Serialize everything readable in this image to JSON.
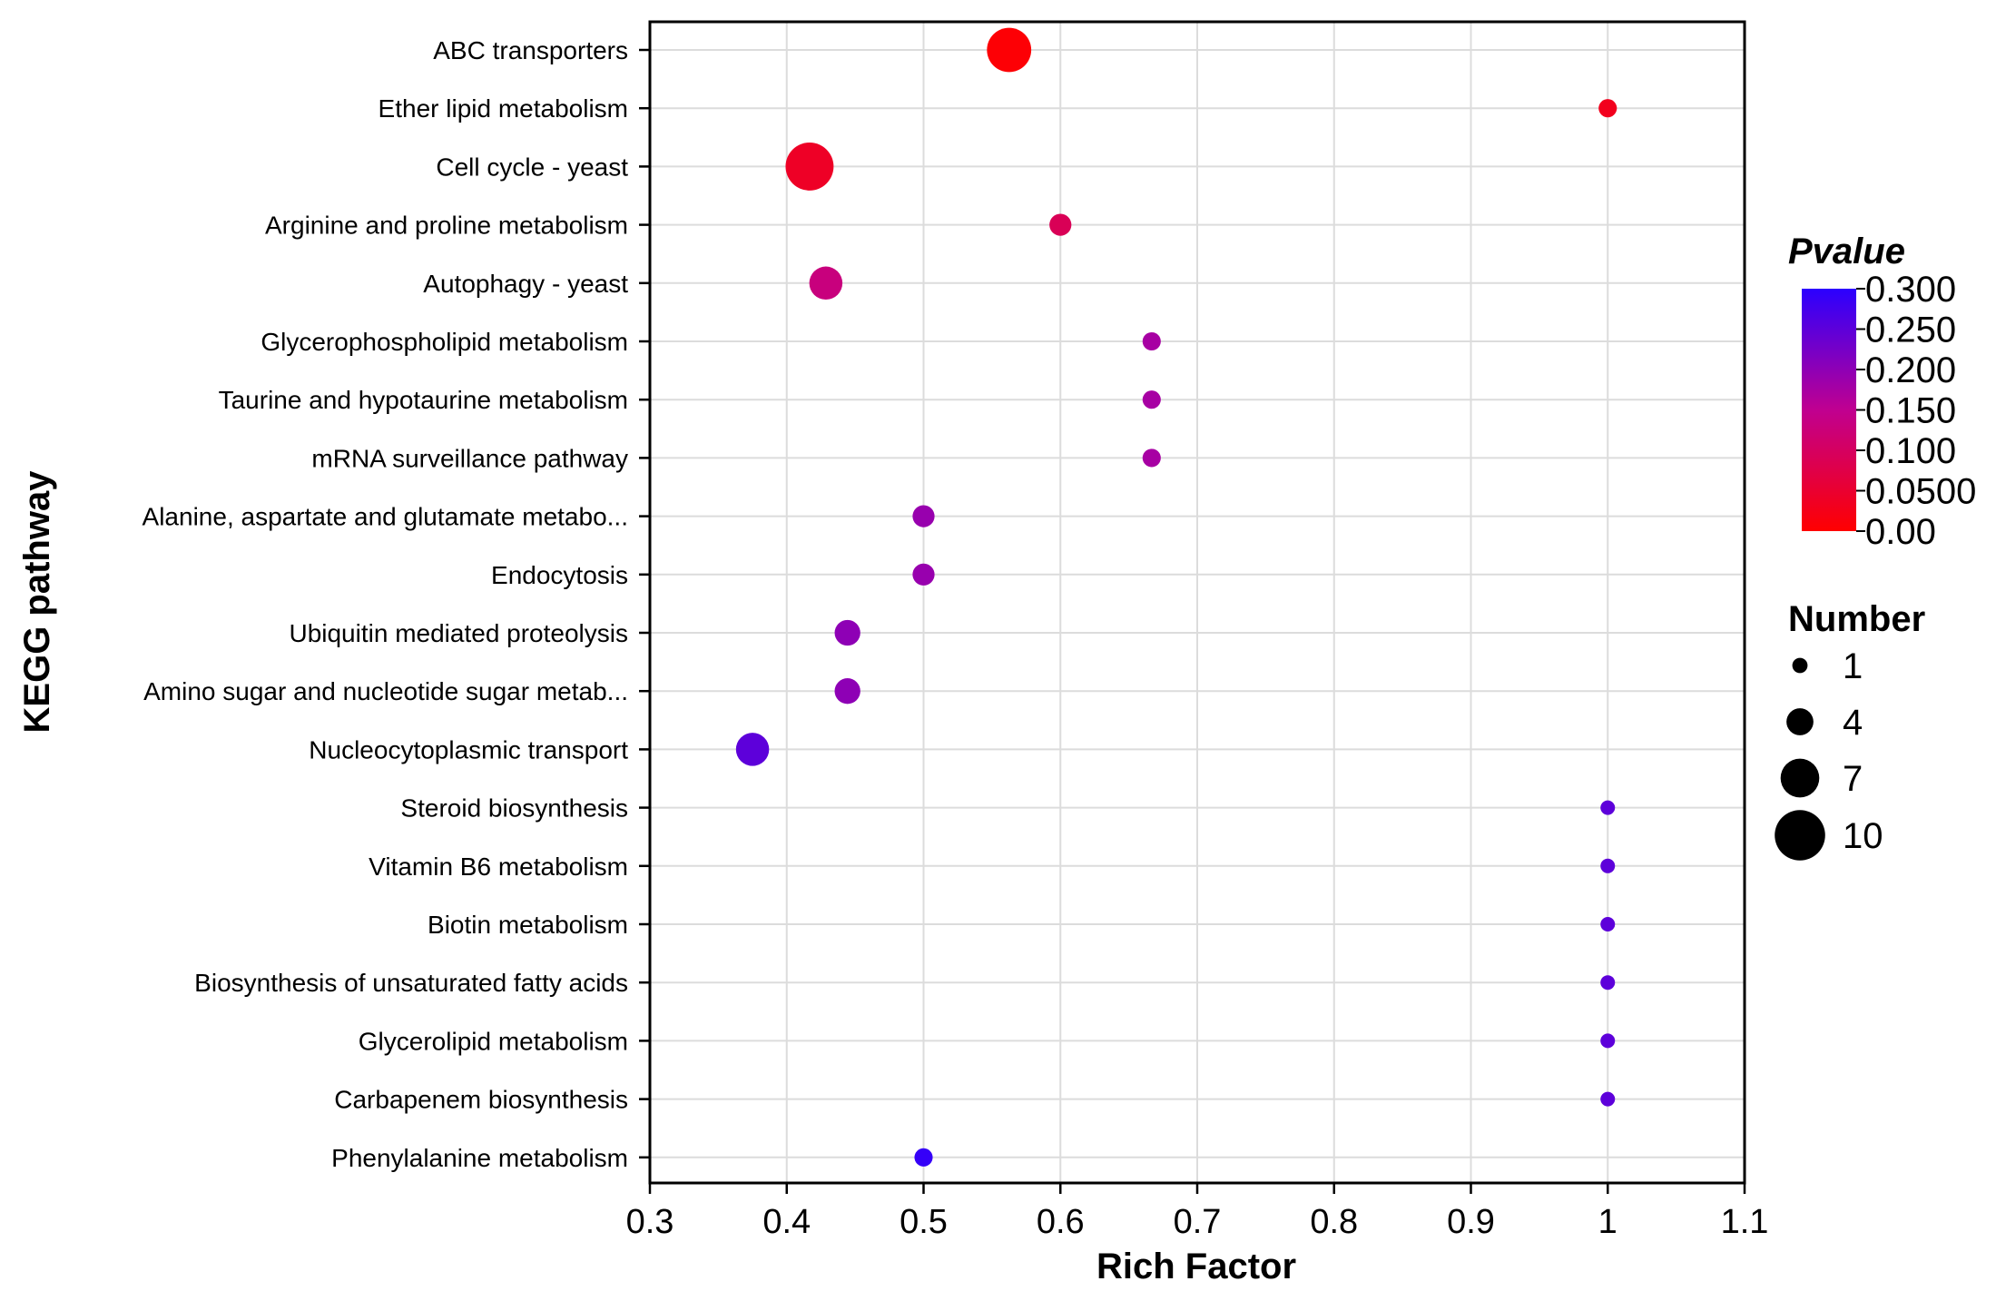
{
  "chart_data": {
    "type": "scatter",
    "title": "",
    "xlabel": "Rich Factor",
    "ylabel": "KEGG pathway",
    "xlim": [
      0.3,
      1.1
    ],
    "xticks": [
      0.3,
      0.4,
      0.5,
      0.6,
      0.7,
      0.8,
      0.9,
      1,
      1.1
    ],
    "xtick_labels": [
      "0.3",
      "0.4",
      "0.5",
      "0.6",
      "0.7",
      "0.8",
      "0.9",
      "1",
      "1.1"
    ],
    "grid": true,
    "points": [
      {
        "pathway": "ABC transporters",
        "rich_factor": 0.5625,
        "number": 9,
        "pvalue": 0.005
      },
      {
        "pathway": "Ether lipid metabolism",
        "rich_factor": 1.0,
        "number": 2,
        "pvalue": 0.03
      },
      {
        "pathway": "Cell cycle - yeast",
        "rich_factor": 0.4167,
        "number": 10,
        "pvalue": 0.04
      },
      {
        "pathway": "Arginine and proline metabolism",
        "rich_factor": 0.6,
        "number": 3,
        "pvalue": 0.09
      },
      {
        "pathway": "Autophagy - yeast",
        "rich_factor": 0.4286,
        "number": 6,
        "pvalue": 0.13
      },
      {
        "pathway": "Glycerophospholipid metabolism",
        "rich_factor": 0.6667,
        "number": 2,
        "pvalue": 0.175
      },
      {
        "pathway": "Taurine and hypotaurine metabolism",
        "rich_factor": 0.6667,
        "number": 2,
        "pvalue": 0.175
      },
      {
        "pathway": "mRNA surveillance pathway",
        "rich_factor": 0.6667,
        "number": 2,
        "pvalue": 0.175
      },
      {
        "pathway": "Alanine, aspartate and glutamate metabo...",
        "rich_factor": 0.5,
        "number": 3,
        "pvalue": 0.19
      },
      {
        "pathway": "Endocytosis",
        "rich_factor": 0.5,
        "number": 3,
        "pvalue": 0.19
      },
      {
        "pathway": "Ubiquitin mediated proteolysis",
        "rich_factor": 0.4444,
        "number": 4,
        "pvalue": 0.2
      },
      {
        "pathway": "Amino sugar and nucleotide sugar metab...",
        "rich_factor": 0.4444,
        "number": 4,
        "pvalue": 0.2
      },
      {
        "pathway": "Nucleocytoplasmic transport",
        "rich_factor": 0.375,
        "number": 6,
        "pvalue": 0.25
      },
      {
        "pathway": "Steroid biosynthesis",
        "rich_factor": 1.0,
        "number": 1,
        "pvalue": 0.25
      },
      {
        "pathway": "Vitamin B6 metabolism",
        "rich_factor": 1.0,
        "number": 1,
        "pvalue": 0.25
      },
      {
        "pathway": "Biotin metabolism",
        "rich_factor": 1.0,
        "number": 1,
        "pvalue": 0.25
      },
      {
        "pathway": "Biosynthesis of unsaturated fatty acids",
        "rich_factor": 1.0,
        "number": 1,
        "pvalue": 0.25
      },
      {
        "pathway": "Glycerolipid metabolism",
        "rich_factor": 1.0,
        "number": 1,
        "pvalue": 0.25
      },
      {
        "pathway": "Carbapenem biosynthesis",
        "rich_factor": 1.0,
        "number": 1,
        "pvalue": 0.25
      },
      {
        "pathway": "Phenylalanine metabolism",
        "rich_factor": 0.5,
        "number": 2,
        "pvalue": 0.29
      }
    ],
    "color_legend": {
      "title": "Pvalue",
      "range": [
        0,
        0.3
      ],
      "ticks": [
        0.3,
        0.25,
        0.2,
        0.15,
        0.1,
        0.05,
        0
      ],
      "tick_labels": [
        "0.300",
        "0.250",
        "0.200",
        "0.150",
        "0.100",
        "0.0500",
        "0.00"
      ],
      "low_color": "#ff0000",
      "high_color": "#2b00ff"
    },
    "size_legend": {
      "title": "Number",
      "values": [
        1,
        4,
        7,
        10
      ],
      "labels": [
        "1",
        "4",
        "7",
        "10"
      ]
    }
  }
}
